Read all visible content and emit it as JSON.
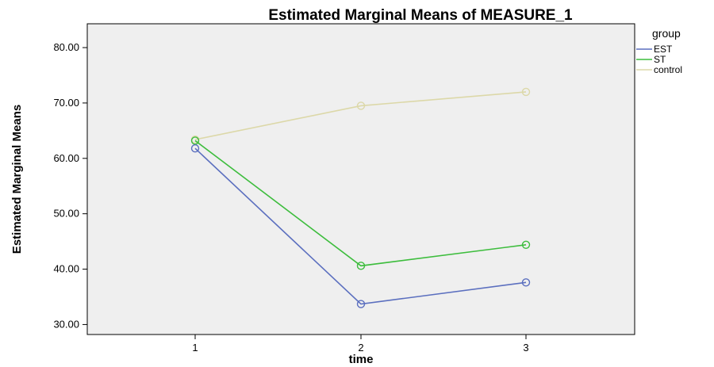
{
  "chart_data": {
    "type": "line",
    "title": "Estimated Marginal Means of MEASURE_1",
    "xlabel": "time",
    "ylabel": "Estimated Marginal Means",
    "categories": [
      "1",
      "2",
      "3"
    ],
    "y_ticks": [
      "30.00",
      "40.00",
      "50.00",
      "60.00",
      "70.00",
      "80.00"
    ],
    "ylim": [
      28.2,
      84.3
    ],
    "grid": false,
    "legend_title": "group",
    "legend_position": "right",
    "series": [
      {
        "name": "EST",
        "color": "#5b6fbf",
        "values": [
          61.8,
          33.7,
          37.6
        ]
      },
      {
        "name": "ST",
        "color": "#3dbd3d",
        "values": [
          63.2,
          40.6,
          44.4
        ]
      },
      {
        "name": "control",
        "color": "#dcd8a8",
        "values": [
          63.4,
          69.5,
          72.0
        ]
      }
    ]
  }
}
